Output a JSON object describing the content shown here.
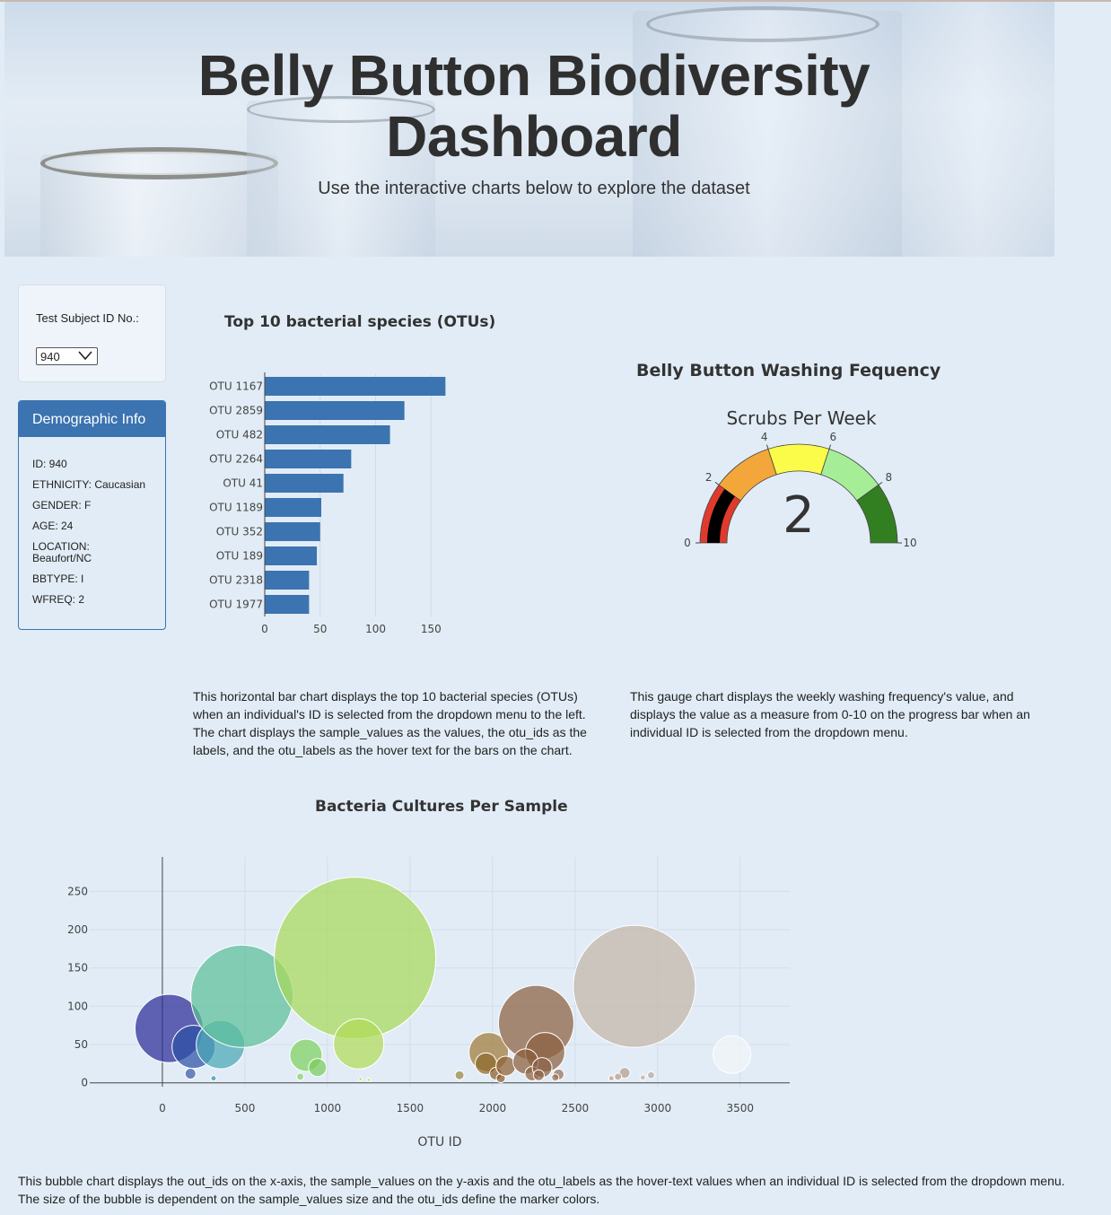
{
  "header": {
    "title": "Belly Button Biodiversity Dashboard",
    "subtitle": "Use the interactive charts below to explore the dataset"
  },
  "selector": {
    "label": "Test Subject ID No.:",
    "selected": "940"
  },
  "demographics": {
    "title": "Demographic Info",
    "items": [
      "ID: 940",
      "ETHNICITY: Caucasian",
      "GENDER: F",
      "AGE: 24",
      "LOCATION: Beaufort/NC",
      "BBTYPE: I",
      "WFREQ: 2"
    ]
  },
  "descriptions": {
    "bar": "This horizontal bar chart displays the top 10 bacterial species (OTUs) when an individual's ID is selected from the dropdown menu to the left. The chart displays the sample_values as the values, the otu_ids as the labels, and the otu_labels as the hover text for the bars on the chart.",
    "gauge": "This gauge chart displays the weekly washing frequency's value, and displays the value as a measure from 0-10 on the progress bar when an individual ID is selected from the dropdown menu.",
    "bubble": "This bubble chart displays the out_ids on the x-axis, the sample_values on the y-axis and the otu_labels as the hover-text values when an individual ID is selected from the dropdown menu. The size of the bubble is dependent on the sample_values size and the otu_ids define the marker colors."
  },
  "chart_data": [
    {
      "type": "bar",
      "orientation": "horizontal",
      "title": "Top 10 bacterial species (OTUs)",
      "categories": [
        "OTU 1167",
        "OTU 2859",
        "OTU 482",
        "OTU 2264",
        "OTU 41",
        "OTU 1189",
        "OTU 352",
        "OTU 189",
        "OTU 2318",
        "OTU 1977"
      ],
      "values": [
        163,
        126,
        113,
        78,
        71,
        51,
        50,
        47,
        40,
        40
      ],
      "xlim": [
        0,
        170
      ],
      "xticks": [
        0,
        50,
        100,
        150
      ],
      "color": "#3b74b0"
    },
    {
      "type": "gauge",
      "title": "Belly Button Washing Fequency",
      "subtitle": "Scrubs Per Week",
      "value": 2,
      "range": [
        0,
        10
      ],
      "ticks": [
        0,
        2,
        4,
        6,
        8,
        10
      ],
      "steps": [
        {
          "range": [
            0,
            2
          ],
          "color": "#e03a2c"
        },
        {
          "range": [
            2,
            4
          ],
          "color": "#f3a73a"
        },
        {
          "range": [
            4,
            6
          ],
          "color": "#fbfb4a"
        },
        {
          "range": [
            6,
            8
          ],
          "color": "#a6ed98"
        },
        {
          "range": [
            8,
            10
          ],
          "color": "#327f22"
        }
      ],
      "bar_color": "#000000"
    },
    {
      "type": "scatter",
      "mode": "bubble",
      "title": "Bacteria Cultures Per Sample",
      "xlabel": "OTU ID",
      "xlim": [
        -440,
        3800
      ],
      "ylim": [
        -5,
        295
      ],
      "xticks": [
        0,
        500,
        1000,
        1500,
        2000,
        2500,
        3000,
        3500
      ],
      "yticks": [
        0,
        50,
        100,
        150,
        200,
        250
      ],
      "points": [
        {
          "x": 41,
          "y": 71,
          "r": 38,
          "color": "#2b2b95"
        },
        {
          "x": 189,
          "y": 47,
          "r": 24,
          "color": "#2d50a5"
        },
        {
          "x": 352,
          "y": 50,
          "r": 27,
          "color": "#4aa7b5"
        },
        {
          "x": 482,
          "y": 113,
          "r": 57,
          "color": "#5bbf98"
        },
        {
          "x": 170,
          "y": 12,
          "r": 6,
          "color": "#3b5aa6"
        },
        {
          "x": 310,
          "y": 6,
          "r": 3,
          "color": "#3a8fb3"
        },
        {
          "x": 870,
          "y": 36,
          "r": 18,
          "color": "#7ed160"
        },
        {
          "x": 940,
          "y": 20,
          "r": 10,
          "color": "#78cc5c"
        },
        {
          "x": 835,
          "y": 8,
          "r": 4,
          "color": "#86d566"
        },
        {
          "x": 1167,
          "y": 163,
          "r": 90,
          "color": "#a8d85a"
        },
        {
          "x": 1189,
          "y": 51,
          "r": 28,
          "color": "#b1db58"
        },
        {
          "x": 1200,
          "y": 5,
          "r": 2,
          "color": "#c0dd4e"
        },
        {
          "x": 1250,
          "y": 4,
          "r": 2,
          "color": "#c8df50"
        },
        {
          "x": 1800,
          "y": 10,
          "r": 5,
          "color": "#9a8640"
        },
        {
          "x": 1977,
          "y": 40,
          "r": 22,
          "color": "#9f7a38"
        },
        {
          "x": 1960,
          "y": 25,
          "r": 12,
          "color": "#8e6a2a"
        },
        {
          "x": 2020,
          "y": 12,
          "r": 7,
          "color": "#8a5e2c"
        },
        {
          "x": 2050,
          "y": 6,
          "r": 5,
          "color": "#8b5b2a"
        },
        {
          "x": 2080,
          "y": 22,
          "r": 11,
          "color": "#8f6030"
        },
        {
          "x": 2264,
          "y": 78,
          "r": 42,
          "color": "#8c6040"
        },
        {
          "x": 2318,
          "y": 40,
          "r": 22,
          "color": "#8b5f3e"
        },
        {
          "x": 2200,
          "y": 28,
          "r": 14,
          "color": "#8a5e3c"
        },
        {
          "x": 2240,
          "y": 12,
          "r": 8,
          "color": "#8f6443"
        },
        {
          "x": 2300,
          "y": 20,
          "r": 11,
          "color": "#8b6042"
        },
        {
          "x": 2280,
          "y": 10,
          "r": 6,
          "color": "#8e6245"
        },
        {
          "x": 2400,
          "y": 11,
          "r": 6,
          "color": "#9a7058"
        },
        {
          "x": 2380,
          "y": 7,
          "r": 4,
          "color": "#9a7058"
        },
        {
          "x": 2859,
          "y": 126,
          "r": 68,
          "color": "#c4b5a6"
        },
        {
          "x": 2800,
          "y": 13,
          "r": 6,
          "color": "#b59d90"
        },
        {
          "x": 2760,
          "y": 8,
          "r": 4,
          "color": "#b59d90"
        },
        {
          "x": 2720,
          "y": 6,
          "r": 3,
          "color": "#b8a296"
        },
        {
          "x": 2960,
          "y": 10,
          "r": 4,
          "color": "#bba99e"
        },
        {
          "x": 2910,
          "y": 7,
          "r": 3,
          "color": "#c0aea4"
        },
        {
          "x": 3450,
          "y": 37,
          "r": 21,
          "color": "#f2f5f8"
        }
      ]
    }
  ]
}
